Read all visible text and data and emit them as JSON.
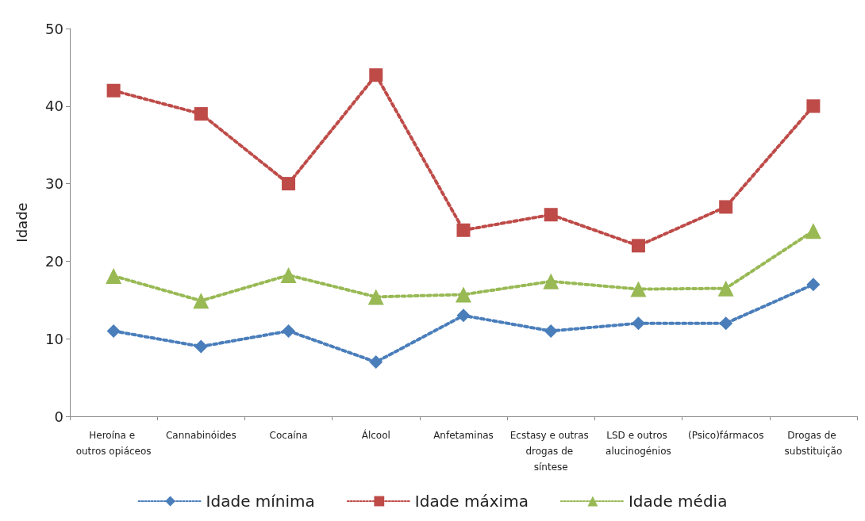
{
  "chart_data": {
    "type": "line",
    "ylabel": "Idade",
    "categories": [
      "Heroína e outros opiáceos",
      "Cannabinóides",
      "Cocaína",
      "Álcool",
      "Anfetaminas",
      "Ecstasy e outras drogas de síntese",
      "LSD e outros alucinogénios",
      "(Psico)fármacos",
      "Drogas de substituição"
    ],
    "series": [
      {
        "name": "Idade mínima",
        "color": "#4a7ebb",
        "marker": "diamond",
        "values": [
          11,
          9,
          11,
          7,
          13,
          11,
          12,
          12,
          17
        ]
      },
      {
        "name": "Idade máxima",
        "color": "#be4b48",
        "marker": "square",
        "values": [
          42,
          39,
          30,
          44,
          24,
          26,
          22,
          27,
          40
        ]
      },
      {
        "name": "Idade média",
        "color": "#98b954",
        "marker": "triangle",
        "values": [
          18.1,
          14.9,
          18.2,
          15.4,
          15.7,
          17.4,
          16.4,
          16.5,
          23.9
        ]
      }
    ],
    "ylim": [
      0,
      50
    ],
    "yticks": [
      0,
      10,
      20,
      30,
      40,
      50
    ],
    "grid": false,
    "legend": "bottom",
    "line_style": "dotted"
  }
}
